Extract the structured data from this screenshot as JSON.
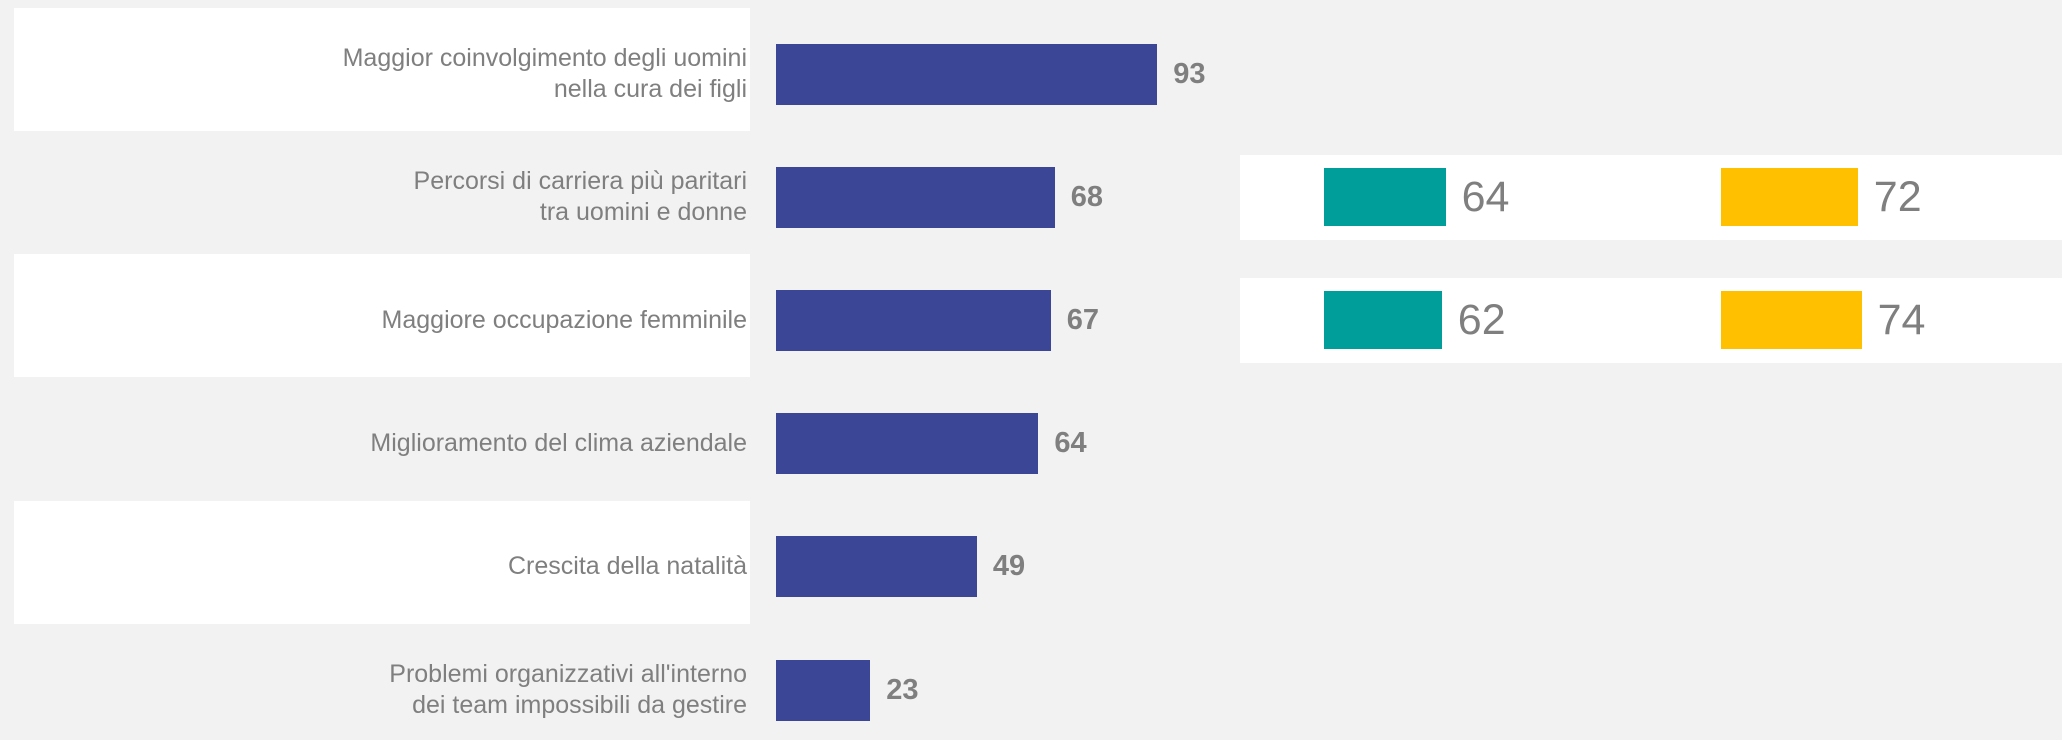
{
  "chart_data": [
    {
      "type": "bar",
      "orientation": "horizontal",
      "categories": [
        "Maggior coinvolgimento degli uomini\nnella cura dei figli",
        "Percorsi di carriera più paritari\ntra uomini e donne",
        "Maggiore occupazione femminile",
        "Miglioramento del clima aziendale",
        "Crescita della natalità",
        "Problemi organizzativi all'interno\ndei team impossibili da gestire"
      ],
      "values": [
        93,
        68,
        67,
        64,
        49,
        23
      ],
      "color": "#3c4696"
    },
    {
      "type": "bar",
      "orientation": "horizontal",
      "categories": [
        null,
        null
      ],
      "series": [
        {
          "color": "#009e9a",
          "values": [
            64,
            62
          ]
        },
        {
          "color": "#ffc000",
          "values": [
            72,
            74
          ]
        }
      ]
    }
  ]
}
